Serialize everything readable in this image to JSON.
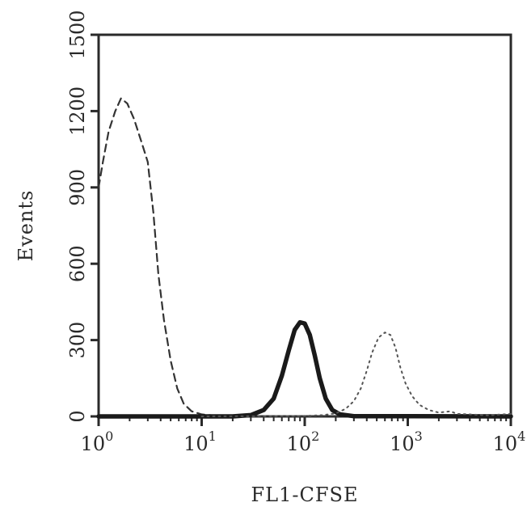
{
  "chart_data": {
    "type": "line",
    "title": "",
    "xlabel": "FL1-CFSE",
    "ylabel": "Events",
    "x_scale": "log",
    "xlim": [
      1,
      10000
    ],
    "ylim": [
      0,
      1500
    ],
    "x_ticks": [
      {
        "value": 1,
        "base": "10",
        "exp": "0"
      },
      {
        "value": 10,
        "base": "10",
        "exp": "1"
      },
      {
        "value": 100,
        "base": "10",
        "exp": "2"
      },
      {
        "value": 1000,
        "base": "10",
        "exp": "3"
      },
      {
        "value": 10000,
        "base": "10",
        "exp": "4"
      }
    ],
    "y_ticks": [
      {
        "value": 0,
        "label": "0"
      },
      {
        "value": 300,
        "label": "300"
      },
      {
        "value": 600,
        "label": "600"
      },
      {
        "value": 900,
        "label": "900"
      },
      {
        "value": 1200,
        "label": "1200"
      },
      {
        "value": 1500,
        "label": "1500"
      }
    ],
    "grid": false,
    "legend": "none",
    "series": [
      {
        "style": "dashed",
        "color": "#333333",
        "points": [
          [
            1.0,
            900
          ],
          [
            1.1,
            1000
          ],
          [
            1.25,
            1120
          ],
          [
            1.45,
            1200
          ],
          [
            1.65,
            1250
          ],
          [
            1.9,
            1230
          ],
          [
            2.2,
            1170
          ],
          [
            2.6,
            1080
          ],
          [
            3.0,
            1000
          ],
          [
            3.4,
            800
          ],
          [
            3.8,
            560
          ],
          [
            4.3,
            380
          ],
          [
            5.0,
            220
          ],
          [
            5.8,
            110
          ],
          [
            6.7,
            50
          ],
          [
            8.0,
            20
          ],
          [
            10.0,
            8
          ],
          [
            14.0,
            3
          ],
          [
            30.0,
            1
          ],
          [
            100.0,
            0
          ],
          [
            10000.0,
            0
          ]
        ]
      },
      {
        "style": "solid-bold",
        "color": "#1a1a1a",
        "points": [
          [
            1.0,
            0
          ],
          [
            20.0,
            0
          ],
          [
            30.0,
            5
          ],
          [
            40.0,
            25
          ],
          [
            50.0,
            70
          ],
          [
            60.0,
            160
          ],
          [
            70.0,
            260
          ],
          [
            80.0,
            340
          ],
          [
            90.0,
            370
          ],
          [
            100.0,
            365
          ],
          [
            112.0,
            320
          ],
          [
            125.0,
            240
          ],
          [
            140.0,
            150
          ],
          [
            160.0,
            70
          ],
          [
            185.0,
            25
          ],
          [
            220.0,
            8
          ],
          [
            300.0,
            1
          ],
          [
            10000.0,
            0
          ]
        ]
      },
      {
        "style": "dotted",
        "color": "#555555",
        "points": [
          [
            10.0,
            0
          ],
          [
            100.0,
            2
          ],
          [
            150.0,
            5
          ],
          [
            200.0,
            12
          ],
          [
            250.0,
            30
          ],
          [
            300.0,
            60
          ],
          [
            350.0,
            110
          ],
          [
            400.0,
            180
          ],
          [
            450.0,
            250
          ],
          [
            520.0,
            310
          ],
          [
            600.0,
            330
          ],
          [
            680.0,
            320
          ],
          [
            760.0,
            270
          ],
          [
            850.0,
            190
          ],
          [
            950.0,
            130
          ],
          [
            1100.0,
            80
          ],
          [
            1300.0,
            45
          ],
          [
            1600.0,
            25
          ],
          [
            2000.0,
            15
          ],
          [
            2600.0,
            20
          ],
          [
            3000.0,
            10
          ],
          [
            4000.0,
            8
          ],
          [
            6000.0,
            4
          ],
          [
            10000.0,
            10
          ]
        ]
      }
    ]
  }
}
